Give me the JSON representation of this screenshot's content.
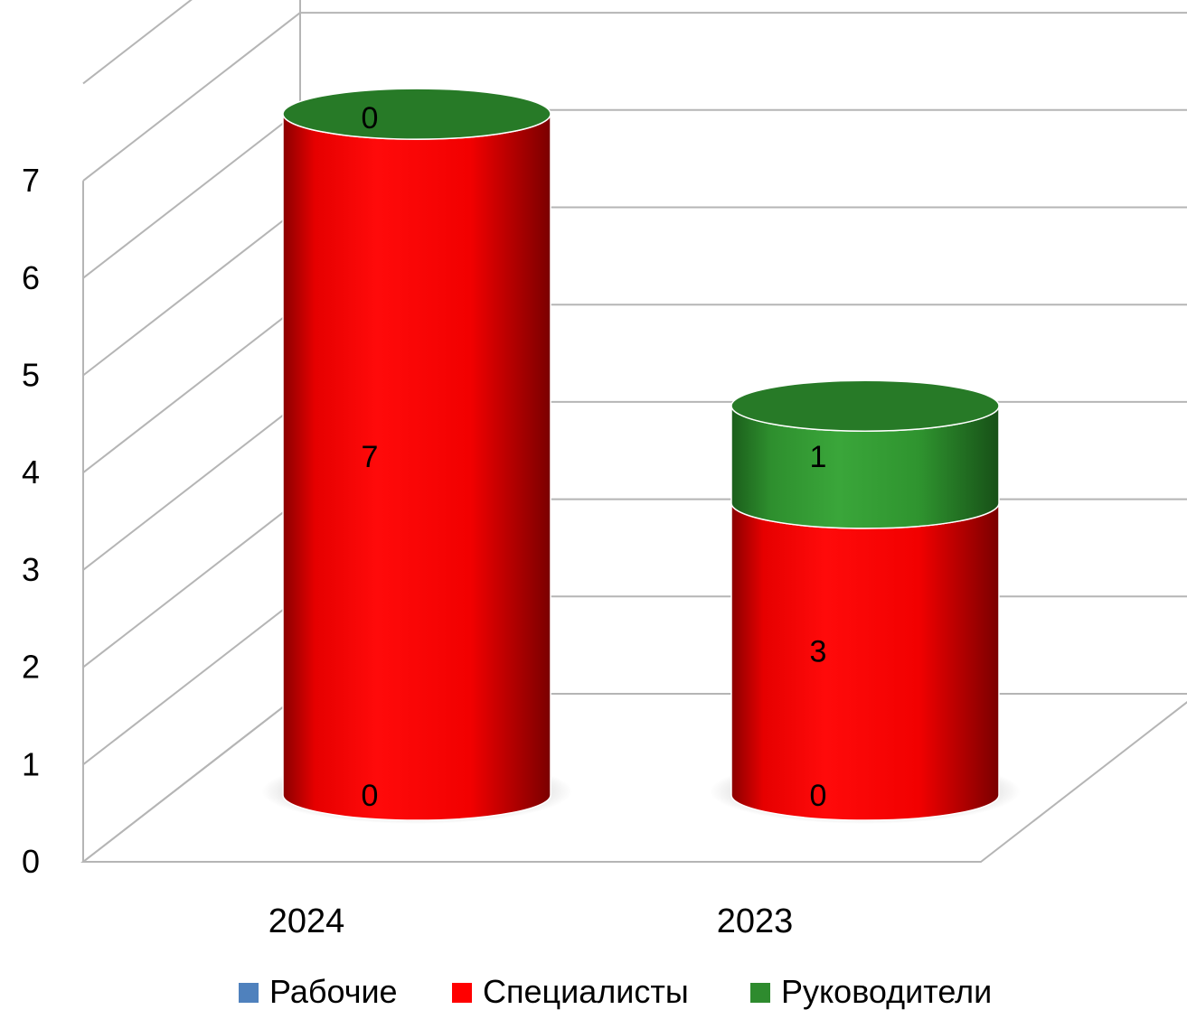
{
  "chart_data": {
    "type": "bar",
    "stacked": true,
    "three_d": true,
    "shape": "cylinder",
    "categories": [
      "2024",
      "2023"
    ],
    "series": [
      {
        "name": "Рабочие",
        "values": [
          0,
          0
        ],
        "color": "#4f81bd"
      },
      {
        "name": "Специалисты",
        "values": [
          7,
          3
        ],
        "color": "#ff0000"
      },
      {
        "name": "Руководители",
        "values": [
          0,
          1
        ],
        "color": "#2e8b2e"
      }
    ],
    "y_ticks": [
      "0",
      "1",
      "2",
      "3",
      "4",
      "5",
      "6",
      "7"
    ],
    "ylim": [
      0,
      7
    ],
    "grid": true,
    "legend_position": "bottom",
    "title": "",
    "xlabel": "",
    "ylabel": ""
  }
}
